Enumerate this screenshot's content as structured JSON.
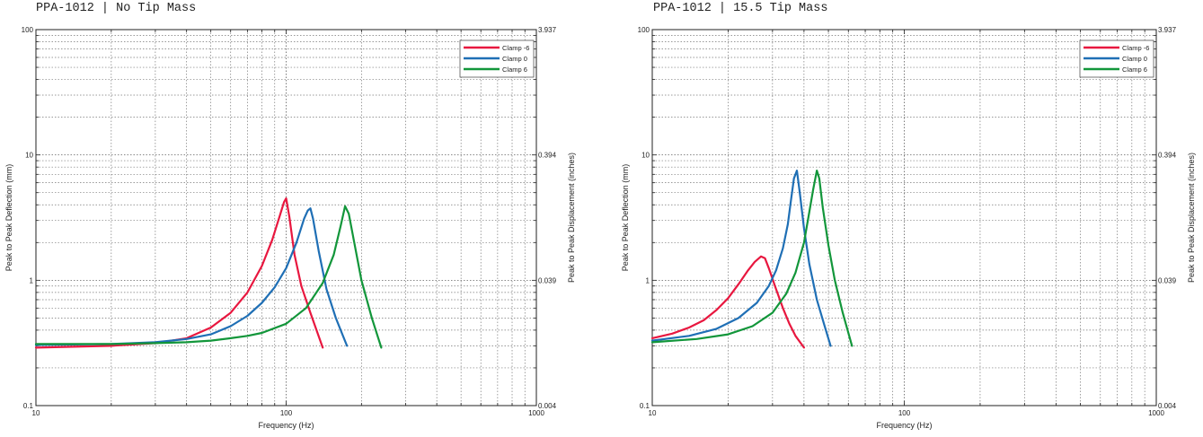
{
  "chart_data": [
    {
      "type": "line",
      "title": "PPA-1012 | No Tip Mass",
      "xlabel": "Frequency (Hz)",
      "ylabel": "Peak to Peak Deflection (mm)",
      "ylabel_right": "Peak to Peak Displacement (inches)",
      "x_scale": "log",
      "y_scale": "log",
      "xlim": [
        10,
        1000
      ],
      "ylim": [
        0.1,
        100
      ],
      "x_ticks": [
        "10",
        "100",
        "1000"
      ],
      "y_ticks": [
        "0.1",
        "1",
        "10",
        "100"
      ],
      "y_ticks_right": [
        "0.004",
        "0.039",
        "0.394",
        "3.937"
      ],
      "grid": true,
      "legend_position": "top-right",
      "series": [
        {
          "name": "Clamp -6",
          "color": "#e8173f",
          "x": [
            10,
            20,
            30,
            40,
            50,
            60,
            70,
            80,
            88,
            94,
            98,
            100,
            103,
            108,
            115,
            125,
            140
          ],
          "y": [
            0.29,
            0.3,
            0.315,
            0.345,
            0.42,
            0.55,
            0.8,
            1.3,
            2.1,
            3.2,
            4.2,
            4.5,
            3.2,
            1.6,
            0.9,
            0.55,
            0.29
          ]
        },
        {
          "name": "Clamp 0",
          "color": "#1f6fb5",
          "x": [
            10,
            20,
            30,
            40,
            50,
            60,
            70,
            80,
            90,
            100,
            110,
            118,
            122,
            125,
            128,
            135,
            145,
            158,
            175
          ],
          "y": [
            0.305,
            0.31,
            0.32,
            0.34,
            0.37,
            0.43,
            0.52,
            0.66,
            0.88,
            1.25,
            2.0,
            3.1,
            3.6,
            3.75,
            3.1,
            1.7,
            0.85,
            0.5,
            0.3
          ]
        },
        {
          "name": "Clamp 6",
          "color": "#12963a",
          "x": [
            10,
            20,
            30,
            40,
            50,
            60,
            70,
            80,
            100,
            120,
            140,
            155,
            165,
            172,
            178,
            188,
            200,
            220,
            240
          ],
          "y": [
            0.31,
            0.31,
            0.315,
            0.32,
            0.33,
            0.345,
            0.36,
            0.38,
            0.45,
            0.6,
            0.95,
            1.6,
            2.7,
            3.9,
            3.4,
            1.9,
            1.0,
            0.5,
            0.29
          ]
        }
      ]
    },
    {
      "type": "line",
      "title": "PPA-1012 | 15.5 Tip Mass",
      "xlabel": "Frequency (Hz)",
      "ylabel": "Peak to Peak Deflection (mm)",
      "ylabel_right": "Peak to Peak Displacement (inches)",
      "x_scale": "log",
      "y_scale": "log",
      "xlim": [
        10,
        1000
      ],
      "ylim": [
        0.1,
        100
      ],
      "x_ticks": [
        "10",
        "100",
        "1000"
      ],
      "y_ticks": [
        "0.1",
        "1",
        "10",
        "100"
      ],
      "y_ticks_right": [
        "0.004",
        "0.039",
        "0.394",
        "3.937"
      ],
      "grid": true,
      "legend_position": "top-right",
      "series": [
        {
          "name": "Clamp -6",
          "color": "#e8173f",
          "x": [
            10,
            12,
            14,
            16,
            18,
            20,
            22,
            24,
            25.5,
            27,
            28,
            29,
            31,
            33,
            35,
            37,
            40
          ],
          "y": [
            0.345,
            0.375,
            0.42,
            0.48,
            0.58,
            0.72,
            0.93,
            1.2,
            1.4,
            1.55,
            1.5,
            1.25,
            0.85,
            0.6,
            0.45,
            0.36,
            0.29
          ]
        },
        {
          "name": "Clamp 0",
          "color": "#1f6fb5",
          "x": [
            10,
            14,
            18,
            22,
            26,
            29,
            31,
            33,
            34.5,
            35.5,
            36.5,
            37.5,
            38.5,
            40,
            42,
            45,
            48,
            51
          ],
          "y": [
            0.33,
            0.36,
            0.41,
            0.5,
            0.66,
            0.9,
            1.2,
            1.8,
            2.8,
            4.3,
            6.5,
            7.5,
            5.0,
            2.6,
            1.35,
            0.7,
            0.45,
            0.3
          ]
        },
        {
          "name": "Clamp 6",
          "color": "#12963a",
          "x": [
            10,
            15,
            20,
            25,
            30,
            34,
            37,
            40,
            42,
            43.5,
            45,
            46,
            47.5,
            50,
            53,
            57,
            62
          ],
          "y": [
            0.32,
            0.34,
            0.37,
            0.43,
            0.55,
            0.78,
            1.15,
            2.0,
            3.5,
            5.3,
            7.5,
            6.5,
            3.8,
            1.9,
            1.0,
            0.55,
            0.3
          ]
        }
      ]
    }
  ]
}
